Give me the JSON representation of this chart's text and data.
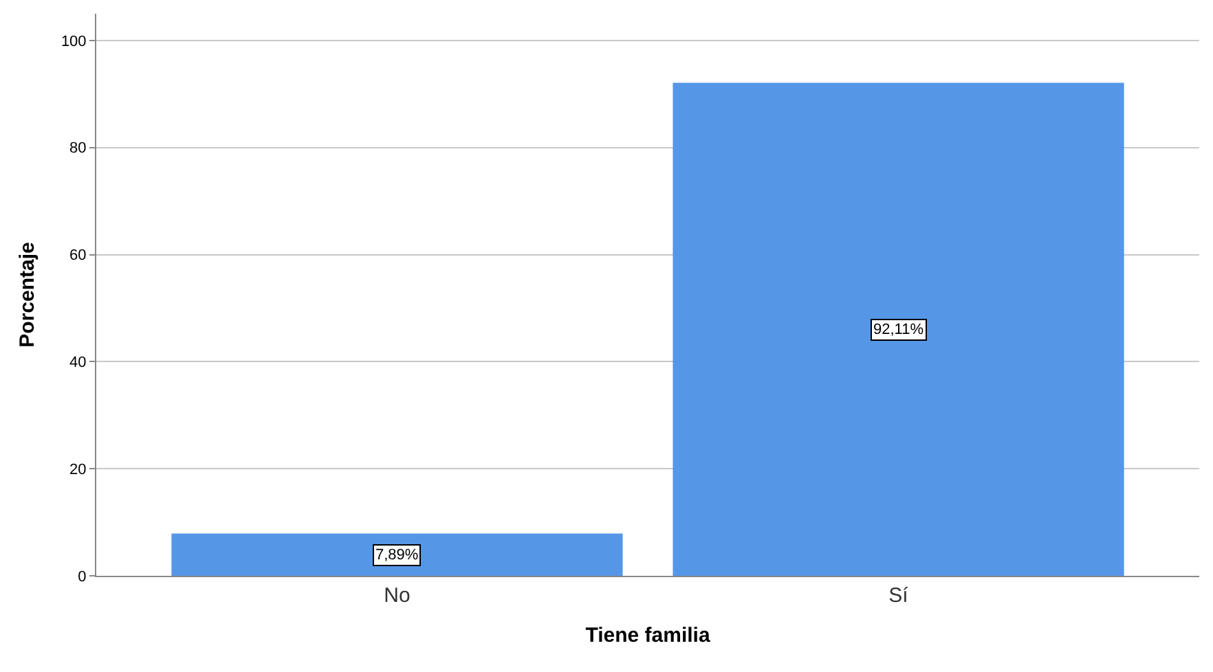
{
  "chart_data": {
    "type": "bar",
    "xlabel": "Tiene familia",
    "ylabel": "Porcentaje",
    "categories": [
      "No",
      "Sí"
    ],
    "values": [
      7.89,
      92.11
    ],
    "value_labels": [
      "7,89%",
      "92,11%"
    ],
    "color": "#5596e6",
    "ylim": [
      0,
      105
    ],
    "yticks": [
      0,
      20,
      40,
      60,
      80,
      100
    ],
    "grid": "y",
    "legend": false
  }
}
